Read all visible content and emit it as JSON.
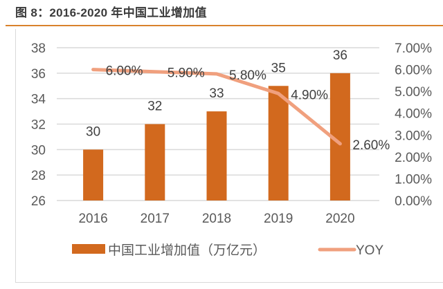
{
  "header": {
    "title": "图 8：2016-2020 年中国工业增加值"
  },
  "colors": {
    "bar": "#d2691e",
    "line": "#f0a07e",
    "grid": "#d9d9d9",
    "title_rule": "#d9822b"
  },
  "chart_data": {
    "type": "bar",
    "title": "图 8：2016-2020 年中国工业增加值",
    "xlabel": "",
    "ylabel": "",
    "categories": [
      "2016",
      "2017",
      "2018",
      "2019",
      "2020"
    ],
    "series": [
      {
        "name": "中国工业增加值（万亿元）",
        "type": "bar",
        "axis": "left",
        "values": [
          30,
          32,
          33,
          35,
          36
        ],
        "labels": [
          "30",
          "32",
          "33",
          "35",
          "36"
        ]
      },
      {
        "name": "YOY",
        "type": "line",
        "axis": "right",
        "values": [
          0.06,
          0.059,
          0.058,
          0.049,
          0.026
        ],
        "labels": [
          "6.00%",
          "5.90%",
          "5.80%",
          "4.90%",
          "2.60%"
        ]
      }
    ],
    "ylim": [
      26,
      38
    ],
    "y_ticks": [
      "26",
      "28",
      "30",
      "32",
      "34",
      "36",
      "38"
    ],
    "y2lim": [
      0,
      0.07
    ],
    "y2_ticks": [
      "0.00%",
      "1.00%",
      "2.00%",
      "3.00%",
      "4.00%",
      "5.00%",
      "6.00%",
      "7.00%"
    ],
    "grid": true,
    "legend": {
      "placement": "bottom",
      "entries": [
        "中国工业增加值（万亿元）",
        "YOY"
      ]
    }
  }
}
